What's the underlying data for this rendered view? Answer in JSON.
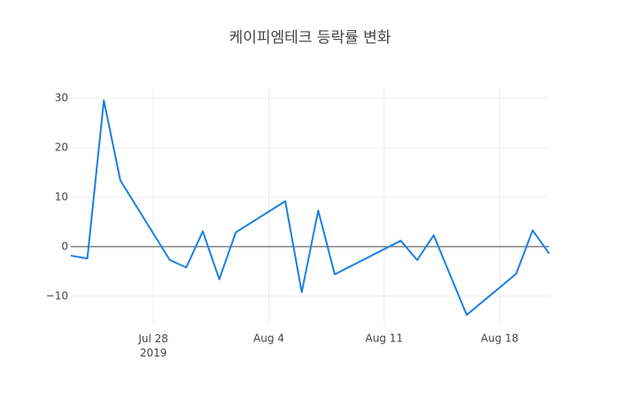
{
  "chart_data": {
    "type": "line",
    "title": "케이피엠테크 등락률 변화",
    "x": [
      "2019-07-23",
      "2019-07-24",
      "2019-07-25",
      "2019-07-26",
      "2019-07-29",
      "2019-07-30",
      "2019-07-31",
      "2019-08-01",
      "2019-08-02",
      "2019-08-05",
      "2019-08-06",
      "2019-08-07",
      "2019-08-08",
      "2019-08-12",
      "2019-08-13",
      "2019-08-14",
      "2019-08-16",
      "2019-08-19",
      "2019-08-20",
      "2019-08-21"
    ],
    "series": [
      {
        "color": "#1a80e0",
        "values": [
          -1.8,
          -2.4,
          29.6,
          13.4,
          -2.7,
          -4.2,
          3.1,
          -6.6,
          2.9,
          9.2,
          -9.2,
          7.3,
          -5.6,
          1.2,
          -2.7,
          2.3,
          -13.8,
          -5.5,
          3.3,
          -1.4
        ]
      }
    ],
    "xlim": [
      "2019-07-23",
      "2019-08-21"
    ],
    "xticks": [
      {
        "value": "2019-07-28",
        "label": "Jul 28\n2019"
      },
      {
        "value": "2019-08-04",
        "label": "Aug 4"
      },
      {
        "value": "2019-08-11",
        "label": "Aug 11"
      },
      {
        "value": "2019-08-18",
        "label": "Aug 18"
      }
    ],
    "ylim": [
      -15.4,
      32
    ],
    "yticks": [
      {
        "value": -10,
        "label": "−10"
      },
      0,
      10,
      20,
      30
    ],
    "grid": true
  }
}
